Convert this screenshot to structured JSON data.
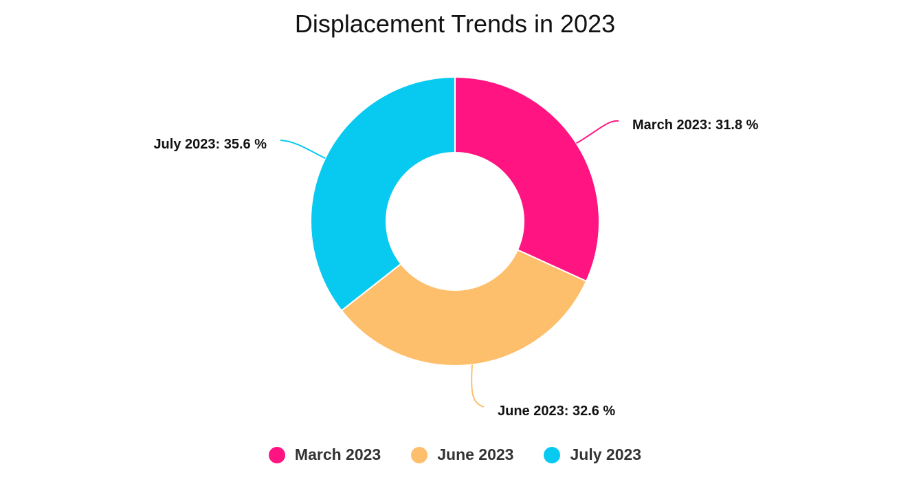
{
  "chart_data": {
    "type": "pie",
    "variant": "donut",
    "title": "Displacement Trends in 2023",
    "categories": [
      "March 2023",
      "June 2023",
      "July 2023"
    ],
    "values": [
      31.8,
      32.6,
      35.6
    ],
    "unit": "%",
    "colors": [
      "#ff1481",
      "#fdbf6b",
      "#08c9f0"
    ],
    "slices": [
      {
        "label": "March 2023",
        "value": 31.8,
        "display": "March 2023: 31.8 %",
        "color": "#ff1481"
      },
      {
        "label": "June 2023",
        "value": 32.6,
        "display": "June 2023: 32.6 %",
        "color": "#fdbf6b"
      },
      {
        "label": "July 2023",
        "value": 35.6,
        "display": "July 2023: 35.6 %",
        "color": "#08c9f0"
      }
    ],
    "legend": {
      "position": "bottom",
      "items": [
        "March 2023",
        "June 2023",
        "July 2023"
      ]
    }
  }
}
